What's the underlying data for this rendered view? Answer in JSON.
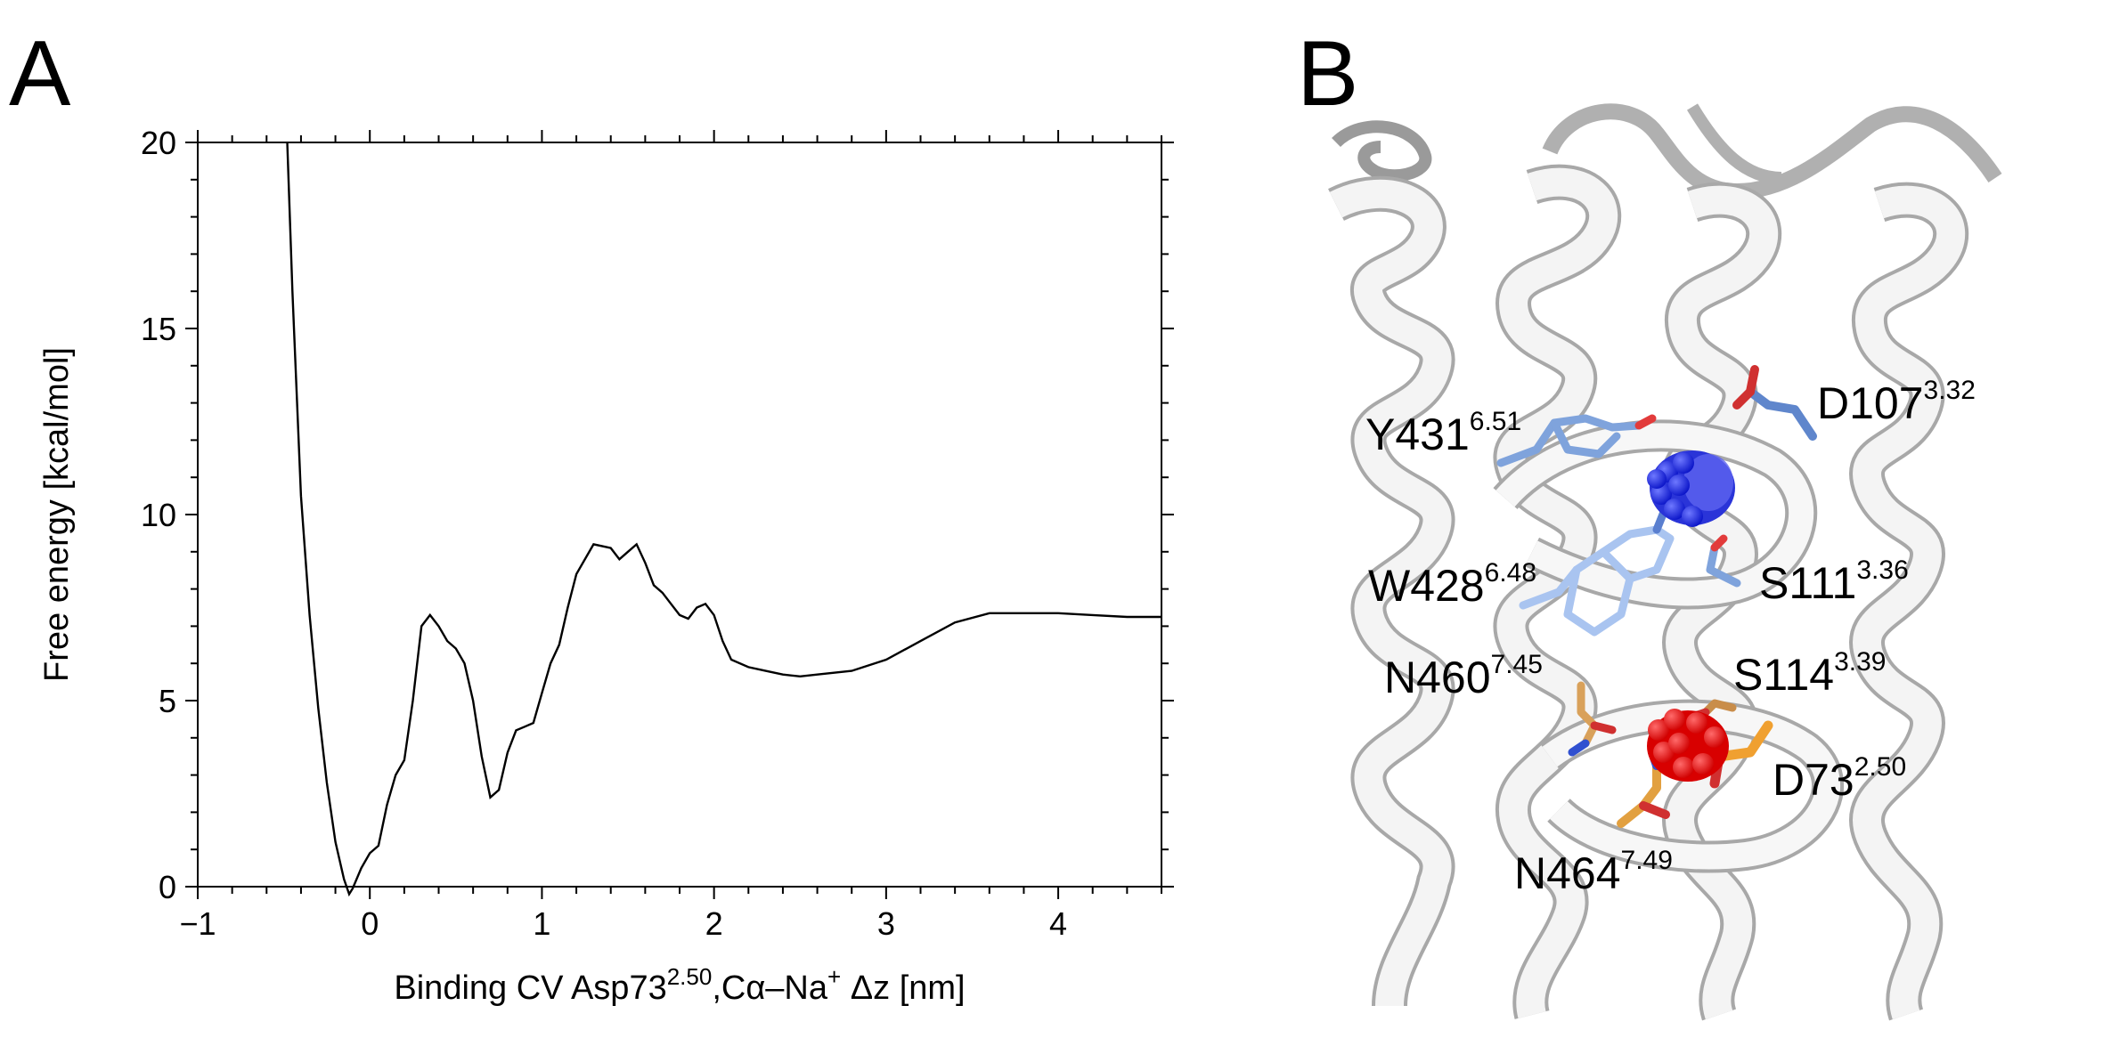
{
  "panel_a": {
    "letter": "A",
    "ylabel": "Free energy [kcal/mol]",
    "xlabel_parts": {
      "main": "Binding CV Asp73",
      "sup": "2.50",
      "mid": ",Cα–Na",
      "sup2": "+",
      "end": " Δz [nm]"
    }
  },
  "panel_b": {
    "letter": "B",
    "residues": [
      {
        "name": "Y431",
        "sup": "6.51"
      },
      {
        "name": "D107",
        "sup": "3.32"
      },
      {
        "name": "W428",
        "sup": "6.48"
      },
      {
        "name": "S111",
        "sup": "3.36"
      },
      {
        "name": "N460",
        "sup": "7.45"
      },
      {
        "name": "S114",
        "sup": "3.39"
      },
      {
        "name": "D73",
        "sup": "2.50"
      },
      {
        "name": "N464",
        "sup": "7.49"
      }
    ],
    "colors": {
      "ribbon": "#f2f2f2",
      "ligand_blue": "#0a14c8",
      "ion_red": "#e00000",
      "stick_blue": "#7fa3dc",
      "stick_orange": "#e69a2e"
    }
  },
  "chart_data": {
    "type": "line",
    "xlim": [
      -1,
      4.6
    ],
    "ylim": [
      0,
      20
    ],
    "xticks": [
      -1,
      0,
      1,
      2,
      3,
      4
    ],
    "xtick_labels": [
      "−1",
      "0",
      "1",
      "2",
      "3",
      "4"
    ],
    "yticks": [
      0,
      5,
      10,
      15,
      20
    ],
    "ytick_labels": [
      "0",
      "5",
      "10",
      "15",
      "20"
    ],
    "grid": false,
    "series": [
      {
        "x": [
          -0.48,
          -0.45,
          -0.4,
          -0.35,
          -0.3,
          -0.25,
          -0.2,
          -0.15,
          -0.12,
          -0.1,
          -0.05,
          0.0,
          0.05,
          0.1,
          0.15,
          0.2,
          0.25,
          0.3,
          0.35,
          0.4,
          0.45,
          0.5,
          0.55,
          0.6,
          0.65,
          0.7,
          0.75,
          0.8,
          0.85,
          0.9,
          0.95,
          1.0,
          1.05,
          1.1,
          1.15,
          1.2,
          1.3,
          1.4,
          1.45,
          1.5,
          1.55,
          1.6,
          1.65,
          1.7,
          1.75,
          1.8,
          1.85,
          1.9,
          1.95,
          2.0,
          2.05,
          2.1,
          2.2,
          2.3,
          2.4,
          2.5,
          2.6,
          2.8,
          3.0,
          3.2,
          3.4,
          3.6,
          3.8,
          4.0,
          4.2,
          4.4,
          4.6
        ],
        "y": [
          20.0,
          16.0,
          10.5,
          7.3,
          4.8,
          2.8,
          1.2,
          0.2,
          -0.2,
          -0.05,
          0.5,
          0.9,
          1.1,
          2.2,
          3.0,
          3.4,
          5.0,
          7.0,
          7.3,
          7.0,
          6.6,
          6.4,
          6.0,
          5.0,
          3.5,
          2.4,
          2.6,
          3.6,
          4.2,
          4.3,
          4.4,
          5.2,
          6.0,
          6.5,
          7.5,
          8.4,
          9.2,
          9.1,
          8.8,
          9.0,
          9.2,
          8.7,
          8.1,
          7.9,
          7.6,
          7.3,
          7.2,
          7.5,
          7.6,
          7.3,
          6.6,
          6.1,
          5.9,
          5.8,
          5.7,
          5.65,
          5.7,
          5.8,
          6.1,
          6.6,
          7.1,
          7.35,
          7.35,
          7.35,
          7.3,
          7.25,
          7.25
        ]
      }
    ]
  }
}
